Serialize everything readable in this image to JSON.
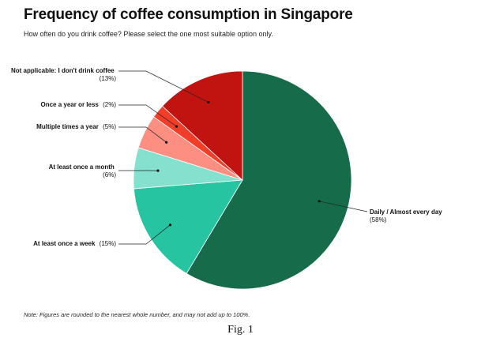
{
  "chart_data": {
    "type": "pie",
    "title": "Frequency of coffee consumption in Singapore",
    "subtitle": "How often do you drink coffee? Please select the one most suitable option only.",
    "start": "12 o'clock",
    "direction": "clockwise",
    "slices": [
      {
        "label": "Daily / Almost every day",
        "value": 58,
        "value_label": "(58%)",
        "color": "#166c4a"
      },
      {
        "label": "At least once a week",
        "value": 15,
        "value_label": "(15%)",
        "color": "#26c4a1"
      },
      {
        "label": "At least once a month",
        "value": 6,
        "value_label": "(6%)",
        "color": "#85e1cd"
      },
      {
        "label": "Multiple times a year",
        "value": 5,
        "value_label": "(5%)",
        "color": "#fc8e82"
      },
      {
        "label": "Once a year or less",
        "value": 2,
        "value_label": "(2%)",
        "color": "#f23d28"
      },
      {
        "label": "Not applicable: I don't drink coffee",
        "value": 13,
        "value_label": "(13%)",
        "color": "#c1130f"
      }
    ],
    "note": "Note: Figures are rounded to the nearest whole number, and may not add up to 100%.",
    "caption": "Fig. 1"
  }
}
